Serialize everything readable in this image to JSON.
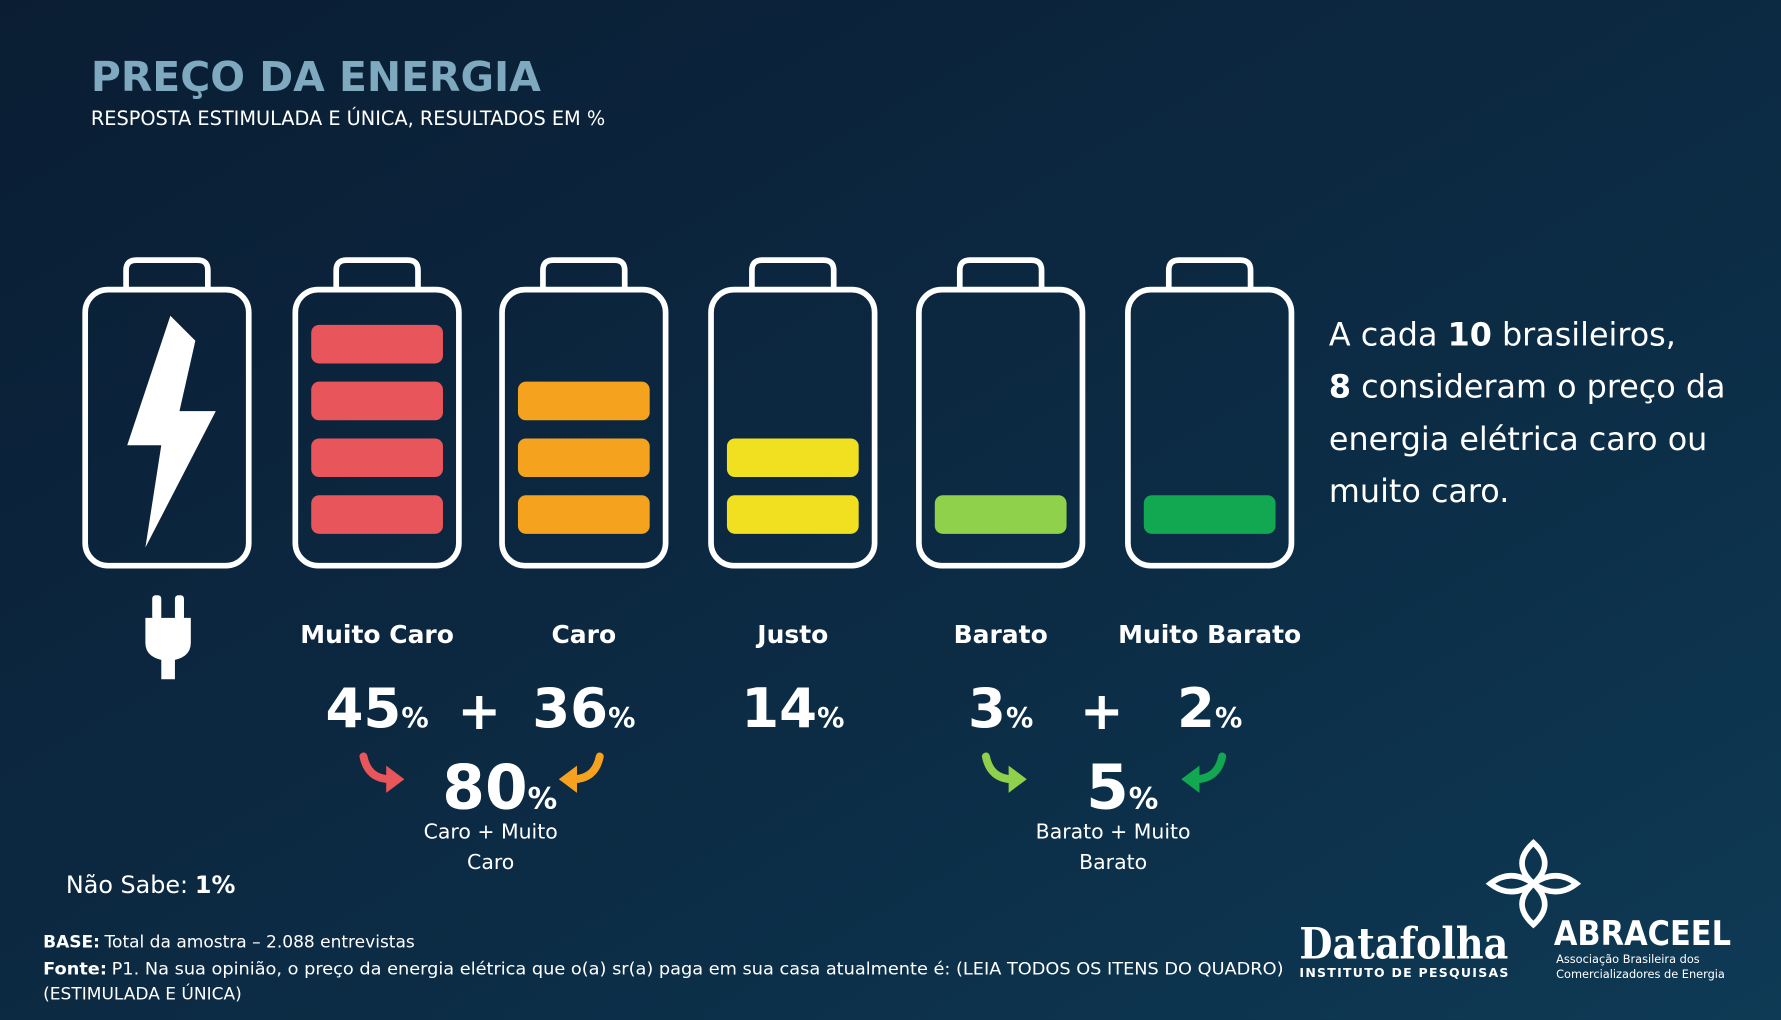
{
  "header": {
    "title": "PREÇO DA ENERGIA",
    "subtitle": "RESPOSTA ESTIMULADA E ÚNICA, RESULTADOS EM %"
  },
  "unit": "%",
  "plus": "+",
  "items": [
    {
      "label": "Muito Caro",
      "value": 45
    },
    {
      "label": "Caro",
      "value": 36
    },
    {
      "label": "Justo",
      "value": 14
    },
    {
      "label": "Barato",
      "value": 3
    },
    {
      "label": "Muito Barato",
      "value": 2
    }
  ],
  "groups": [
    {
      "value": 80,
      "caption_lines": [
        "Caro + Muito",
        "Caro"
      ]
    },
    {
      "value": 5,
      "caption_lines": [
        "Barato + Muito",
        "Barato"
      ]
    }
  ],
  "callout": {
    "parts": [
      "A cada",
      "10",
      "brasileiros,",
      "8",
      "consideram o preço da energia elétrica caro ou muito caro."
    ]
  },
  "nao_sabe": {
    "label": "Não Sabe:",
    "value": 1
  },
  "footer": {
    "base_label": "BASE:",
    "base": "Total da amostra – 2.088 entrevistas",
    "fonte_label": "Fonte:",
    "fonte": "P1. Na sua opinião, o preço da energia elétrica que o(a) sr(a) paga em sua casa atualmente é:  (LEIA TODOS OS ITENS DO QUADRO)",
    "fonte_line2": "(ESTIMULADA E ÚNICA)"
  },
  "logos": {
    "datafolha": "Datafolha",
    "datafolha_sub": "INSTITUTO DE PESQUISAS",
    "abraceel": "ABRACEEL",
    "abraceel_sub1": "Associação Brasileira dos",
    "abraceel_sub2": "Comercializadores de Energia"
  }
}
